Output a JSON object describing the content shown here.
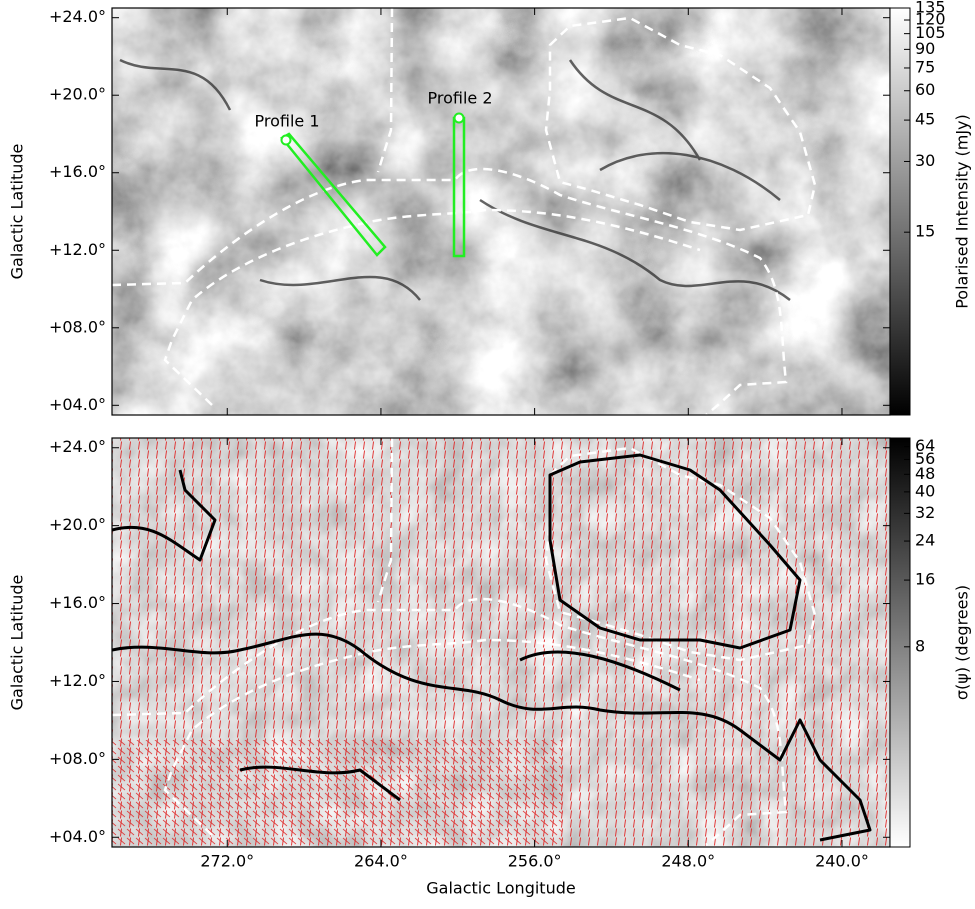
{
  "chart_data": [
    {
      "type": "image",
      "ylabel": "Galactic Latitude",
      "xlim": [
        278,
        237.5
      ],
      "ylim": [
        3.5,
        24.5
      ],
      "xticks": [
        272,
        264,
        256,
        248,
        240
      ],
      "yticks": [
        {
          "value": 4,
          "label": "+04.0°"
        },
        {
          "value": 8,
          "label": "+08.0°"
        },
        {
          "value": 12,
          "label": "+12.0°"
        },
        {
          "value": 16,
          "label": "+16.0°"
        },
        {
          "value": 20,
          "label": "+20.0°"
        },
        {
          "value": 24,
          "label": "+24.0°"
        }
      ],
      "colorbar": {
        "label": "Polarised Intensity (mJy)",
        "scale": "log",
        "clim": [
          2.5,
          135
        ],
        "colormap": "gray",
        "ticks": [
          15,
          30,
          45,
          60,
          75,
          90,
          105,
          120,
          135
        ]
      },
      "annotations": [
        "Profile 1",
        "Profile 2"
      ]
    },
    {
      "type": "image",
      "xlabel": "Galactic Longitude",
      "ylabel": "Galactic Latitude",
      "xlim": [
        278,
        237.5
      ],
      "ylim": [
        3.5,
        24.5
      ],
      "xticks": [
        {
          "value": 272,
          "label": "272.0°"
        },
        {
          "value": 264,
          "label": "264.0°"
        },
        {
          "value": 256,
          "label": "256.0°"
        },
        {
          "value": 248,
          "label": "248.0°"
        },
        {
          "value": 240,
          "label": "240.0°"
        }
      ],
      "yticks": [
        {
          "value": 4,
          "label": "+04.0°"
        },
        {
          "value": 8,
          "label": "+08.0°"
        },
        {
          "value": 12,
          "label": "+12.0°"
        },
        {
          "value": 16,
          "label": "+16.0°"
        },
        {
          "value": 20,
          "label": "+20.0°"
        },
        {
          "value": 24,
          "label": "+24.0°"
        }
      ],
      "colorbar": {
        "label": "σ(ψ) (degrees)",
        "scale": "log",
        "clim": [
          1,
          70
        ],
        "colormap": "gray_r",
        "ticks": [
          8,
          16,
          24,
          32,
          40,
          48,
          56,
          64
        ]
      }
    }
  ]
}
